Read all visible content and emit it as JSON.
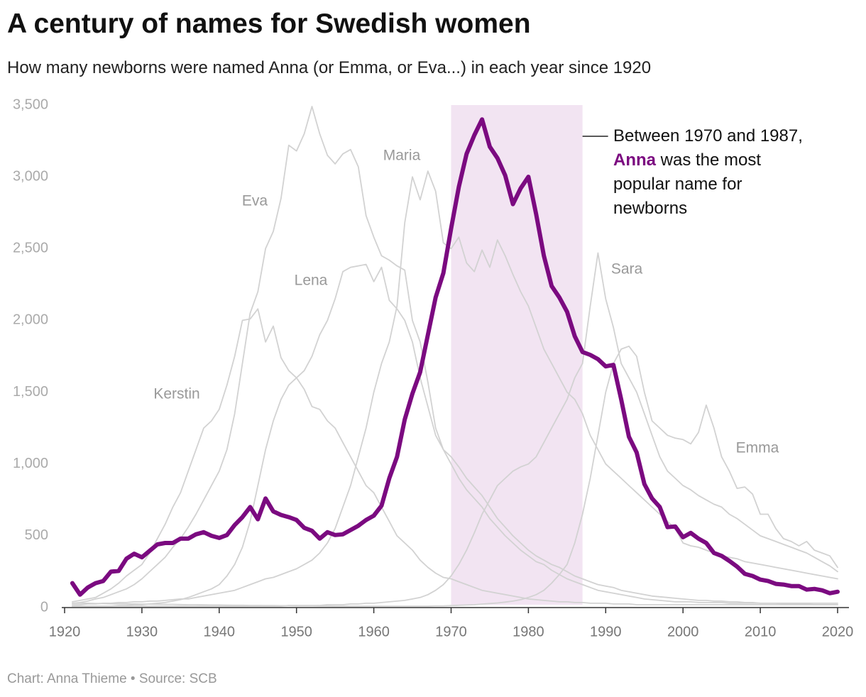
{
  "chart_data": {
    "type": "line",
    "title": "A century of names for Swedish women",
    "subtitle": "How many newborns were named Anna (or Emma, or Eva...) in each year since 1920",
    "source": "Chart: Anna Thieme • Source: SCB",
    "annotation": [
      "Between 1970 and 1987, ",
      "Anna",
      " was the most popular name for newborns"
    ],
    "highlight": [
      1970,
      1987
    ],
    "highlight_color": "#f2e4f2",
    "grid": false,
    "xlim": [
      1920,
      2020
    ],
    "xticks": [
      1920,
      1930,
      1940,
      1950,
      1960,
      1970,
      1980,
      1990,
      2000,
      2010,
      2020
    ],
    "ylim": [
      0,
      3500
    ],
    "yticks": [
      0,
      500,
      {
        "value": 1000,
        "label": "1,000"
      },
      {
        "value": 1500,
        "label": "1,500"
      },
      {
        "value": 2000,
        "label": "2,000"
      },
      {
        "value": 2500,
        "label": "2,500"
      },
      {
        "value": 3000,
        "label": "3,000"
      },
      {
        "value": 3500,
        "label": "3,500"
      }
    ],
    "x": [
      1921,
      1922,
      1923,
      1924,
      1925,
      1926,
      1927,
      1928,
      1929,
      1930,
      1931,
      1932,
      1933,
      1934,
      1935,
      1936,
      1937,
      1938,
      1939,
      1940,
      1941,
      1942,
      1943,
      1944,
      1945,
      1946,
      1947,
      1948,
      1949,
      1950,
      1951,
      1952,
      1953,
      1954,
      1955,
      1956,
      1957,
      1958,
      1959,
      1960,
      1961,
      1962,
      1963,
      1964,
      1965,
      1966,
      1967,
      1968,
      1969,
      1970,
      1971,
      1972,
      1973,
      1974,
      1975,
      1976,
      1977,
      1978,
      1979,
      1980,
      1981,
      1982,
      1983,
      1984,
      1985,
      1986,
      1987,
      1988,
      1989,
      1990,
      1991,
      1992,
      1993,
      1994,
      1995,
      1996,
      1997,
      1998,
      1999,
      2000,
      2001,
      2002,
      2003,
      2004,
      2005,
      2006,
      2007,
      2008,
      2009,
      2010,
      2011,
      2012,
      2013,
      2014,
      2015,
      2016,
      2017,
      2018,
      2019,
      2020
    ],
    "series": [
      {
        "name": "Eva",
        "color": "#d2d2d2",
        "values": [
          30,
          35,
          45,
          60,
          70,
          90,
          110,
          130,
          160,
          200,
          250,
          300,
          350,
          420,
          480,
          560,
          650,
          750,
          850,
          950,
          1100,
          1350,
          1700,
          2050,
          2200,
          2500,
          2620,
          2850,
          3220,
          3180,
          3300,
          3490,
          3300,
          3150,
          3090,
          3160,
          3190,
          3070,
          2730,
          2580,
          2450,
          2420,
          2380,
          2350,
          2000,
          1850,
          1570,
          1250,
          1100,
          1000,
          900,
          820,
          760,
          700,
          620,
          560,
          500,
          450,
          400,
          360,
          320,
          300,
          260,
          230,
          200,
          180,
          160,
          140,
          120,
          110,
          100,
          90,
          80,
          70,
          60,
          55,
          50,
          45,
          40,
          40,
          40,
          35,
          35,
          35,
          35,
          30,
          30,
          30,
          30,
          30,
          30,
          30,
          30,
          30,
          30,
          30,
          30,
          30,
          30,
          30
        ]
      },
      {
        "name": "Maria",
        "color": "#d2d2d2",
        "values": [
          20,
          20,
          25,
          25,
          30,
          30,
          35,
          35,
          40,
          40,
          45,
          45,
          50,
          55,
          60,
          60,
          70,
          80,
          90,
          100,
          110,
          120,
          140,
          160,
          180,
          200,
          210,
          230,
          250,
          270,
          300,
          330,
          380,
          450,
          550,
          700,
          850,
          1050,
          1250,
          1500,
          1700,
          1850,
          2100,
          2680,
          3000,
          2840,
          3040,
          2900,
          2540,
          2500,
          2580,
          2400,
          2340,
          2490,
          2370,
          2560,
          2450,
          2320,
          2200,
          2100,
          1950,
          1800,
          1700,
          1600,
          1500,
          1450,
          1350,
          1200,
          1100,
          1000,
          950,
          900,
          850,
          800,
          750,
          700,
          650,
          600,
          550,
          450,
          430,
          420,
          400,
          380,
          360,
          350,
          340,
          320,
          310,
          300,
          290,
          280,
          270,
          260,
          250,
          240,
          230,
          220,
          210,
          200
        ]
      },
      {
        "name": "Lena",
        "color": "#d2d2d2",
        "values": [
          10,
          10,
          10,
          10,
          10,
          10,
          15,
          15,
          20,
          20,
          25,
          30,
          35,
          45,
          55,
          70,
          90,
          110,
          130,
          160,
          220,
          300,
          420,
          600,
          850,
          1100,
          1300,
          1450,
          1550,
          1600,
          1650,
          1750,
          1900,
          2000,
          2150,
          2340,
          2370,
          2380,
          2390,
          2270,
          2370,
          2140,
          2080,
          2000,
          1850,
          1600,
          1400,
          1200,
          1100,
          1050,
          980,
          900,
          840,
          780,
          700,
          620,
          560,
          500,
          450,
          400,
          360,
          330,
          300,
          280,
          250,
          220,
          200,
          180,
          160,
          150,
          140,
          120,
          110,
          100,
          90,
          80,
          75,
          70,
          65,
          60,
          55,
          50,
          50,
          45,
          45,
          40,
          40,
          35,
          35,
          30,
          30,
          30,
          25,
          25,
          25,
          25,
          20,
          20,
          20,
          20
        ]
      },
      {
        "name": "Kerstin",
        "color": "#d2d2d2",
        "values": [
          40,
          50,
          60,
          70,
          100,
          130,
          170,
          220,
          260,
          300,
          380,
          480,
          580,
          700,
          800,
          950,
          1100,
          1250,
          1300,
          1380,
          1550,
          1750,
          2000,
          2010,
          2080,
          1850,
          1960,
          1740,
          1650,
          1600,
          1520,
          1400,
          1380,
          1300,
          1250,
          1150,
          1050,
          950,
          850,
          800,
          700,
          600,
          500,
          450,
          400,
          330,
          280,
          240,
          210,
          200,
          180,
          160,
          140,
          120,
          110,
          100,
          90,
          80,
          70,
          60,
          55,
          50,
          45,
          40,
          40,
          35,
          35,
          30,
          30,
          30,
          25,
          25,
          25,
          20,
          20,
          20,
          20,
          20,
          20,
          20,
          20,
          20,
          20,
          20,
          20,
          20,
          20,
          20,
          20,
          20,
          20,
          20,
          20,
          20,
          20,
          20,
          20,
          20,
          20,
          20
        ]
      },
      {
        "name": "Sara",
        "color": "#d2d2d2",
        "values": [
          10,
          10,
          10,
          10,
          10,
          10,
          10,
          10,
          10,
          10,
          10,
          10,
          10,
          10,
          10,
          10,
          10,
          10,
          10,
          10,
          10,
          10,
          10,
          10,
          10,
          10,
          10,
          10,
          15,
          15,
          15,
          15,
          15,
          20,
          20,
          20,
          25,
          25,
          30,
          30,
          35,
          40,
          45,
          50,
          60,
          70,
          90,
          120,
          160,
          220,
          300,
          400,
          520,
          650,
          750,
          850,
          900,
          950,
          980,
          1000,
          1050,
          1150,
          1250,
          1350,
          1450,
          1600,
          1700,
          2100,
          2470,
          2150,
          1950,
          1700,
          1600,
          1500,
          1350,
          1200,
          1050,
          950,
          900,
          850,
          820,
          780,
          750,
          720,
          700,
          650,
          620,
          580,
          540,
          500,
          480,
          460,
          440,
          420,
          400,
          380,
          350,
          320,
          290,
          250
        ]
      },
      {
        "name": "Emma",
        "color": "#d2d2d2",
        "values": [
          30,
          30,
          30,
          28,
          28,
          26,
          26,
          25,
          25,
          24,
          24,
          23,
          22,
          22,
          21,
          20,
          20,
          19,
          18,
          18,
          17,
          16,
          16,
          15,
          15,
          14,
          14,
          13,
          13,
          12,
          12,
          12,
          11,
          11,
          10,
          10,
          10,
          10,
          10,
          10,
          10,
          10,
          10,
          10,
          10,
          10,
          10,
          12,
          12,
          14,
          16,
          18,
          20,
          24,
          28,
          32,
          38,
          45,
          55,
          70,
          90,
          120,
          170,
          230,
          300,
          450,
          650,
          900,
          1200,
          1500,
          1700,
          1800,
          1820,
          1750,
          1500,
          1300,
          1250,
          1200,
          1180,
          1170,
          1140,
          1220,
          1410,
          1250,
          1050,
          950,
          830,
          840,
          790,
          650,
          650,
          550,
          480,
          460,
          430,
          460,
          400,
          380,
          360,
          280
        ]
      },
      {
        "color": "#7b0a80",
        "values": [
          170,
          90,
          140,
          170,
          185,
          250,
          255,
          340,
          375,
          350,
          395,
          440,
          450,
          450,
          480,
          480,
          510,
          525,
          500,
          485,
          505,
          575,
          630,
          700,
          615,
          760,
          670,
          645,
          630,
          610,
          555,
          535,
          480,
          525,
          505,
          510,
          540,
          570,
          610,
          640,
          710,
          900,
          1050,
          1310,
          1490,
          1640,
          1900,
          2160,
          2330,
          2640,
          2930,
          3160,
          3290,
          3400,
          3210,
          3130,
          3010,
          2810,
          2920,
          3000,
          2740,
          2450,
          2240,
          2160,
          2060,
          1890,
          1780,
          1760,
          1730,
          1680,
          1690,
          1450,
          1190,
          1080,
          860,
          760,
          700,
          560,
          565,
          490,
          520,
          480,
          450,
          380,
          360,
          325,
          285,
          235,
          220,
          195,
          185,
          165,
          160,
          150,
          150,
          125,
          130,
          120,
          100,
          110
        ]
      }
    ]
  }
}
